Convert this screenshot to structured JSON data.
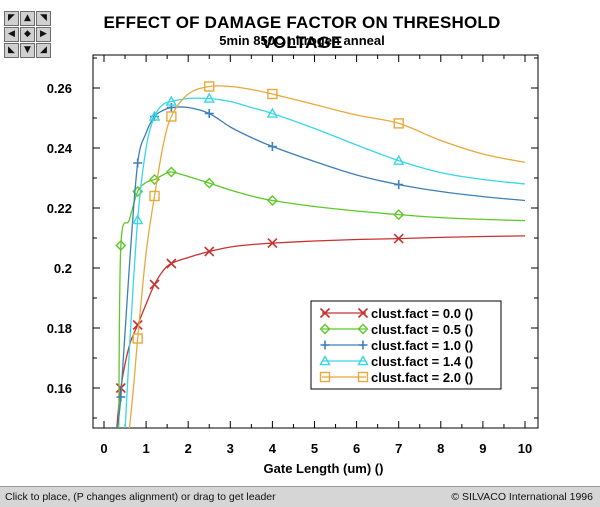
{
  "app": {
    "title": "EFFECT OF DAMAGE FACTOR ON THRESHOLD VOLTAGE",
    "subtitle": "5min 850C nitrogen anneal",
    "nav_buttons": [
      "arrow-up-left",
      "arrow-up",
      "arrow-up-right",
      "arrow-left",
      "center",
      "arrow-right",
      "arrow-down-left",
      "arrow-down",
      "arrow-down-right"
    ]
  },
  "status_bar": {
    "hint": "Click to place, (P changes alignment) or drag to get leader",
    "copyright": "© SILVACO International 1996"
  },
  "chart_data": {
    "type": "line",
    "title": "EFFECT OF DAMAGE FACTOR ON THRESHOLD VOLTAGE",
    "subtitle": "5min 850C nitrogen anneal",
    "xlabel": "Gate Length (um) ()",
    "ylabel": "",
    "xlim": [
      0,
      10
    ],
    "ylim": [
      0.146,
      0.273
    ],
    "xticks": [
      0,
      1,
      2,
      3,
      4,
      5,
      6,
      7,
      8,
      9,
      10
    ],
    "xtick_labels": [
      "0",
      "1",
      "2",
      "3",
      "4",
      "5",
      "6",
      "7",
      "8",
      "9",
      "10"
    ],
    "yticks": [
      0.16,
      0.18,
      0.2,
      0.22,
      0.24,
      0.26
    ],
    "ytick_labels": [
      "0.16",
      "0.18",
      "0.2",
      "0.22",
      "0.24",
      "0.26"
    ],
    "grid": false,
    "legend_position": "lower-right",
    "series": [
      {
        "name": "clust.fact = 0.0 ()",
        "color": "#c83232",
        "marker": "x",
        "x": [
          0.3,
          0.4,
          0.6,
          0.8,
          1.0,
          1.2,
          1.4,
          1.6,
          2.0,
          2.5,
          3.0,
          3.5,
          4.0,
          5.0,
          6.0,
          7.0,
          8.0,
          9.0,
          10.0
        ],
        "y": [
          0.146,
          0.16,
          0.174,
          0.181,
          0.188,
          0.1945,
          0.199,
          0.2015,
          0.2035,
          0.2055,
          0.207,
          0.2078,
          0.2083,
          0.209,
          0.2095,
          0.2098,
          0.2102,
          0.2105,
          0.2107
        ],
        "markers_x": [
          0.4,
          0.8,
          1.2,
          1.6,
          2.5,
          4.0,
          7.0
        ],
        "markers_y": [
          0.16,
          0.181,
          0.1945,
          0.2015,
          0.2055,
          0.2083,
          0.2098
        ]
      },
      {
        "name": "clust.fact = 0.5 ()",
        "color": "#5ec82a",
        "marker": "diamond",
        "x": [
          0.35,
          0.4,
          0.6,
          0.8,
          1.0,
          1.2,
          1.4,
          1.6,
          2.0,
          2.5,
          3.0,
          3.5,
          4.0,
          5.0,
          6.0,
          7.0,
          8.0,
          9.0,
          10.0
        ],
        "y": [
          0.146,
          0.2075,
          0.216,
          0.2255,
          0.2285,
          0.2295,
          0.231,
          0.232,
          0.2305,
          0.2283,
          0.226,
          0.224,
          0.2225,
          0.2205,
          0.219,
          0.2178,
          0.2168,
          0.2162,
          0.2158
        ],
        "markers_x": [
          0.4,
          0.8,
          1.2,
          1.6,
          2.5,
          4.0,
          7.0
        ],
        "markers_y": [
          0.2075,
          0.2255,
          0.2295,
          0.232,
          0.2283,
          0.2225,
          0.2178
        ]
      },
      {
        "name": "clust.fact = 1.0 ()",
        "color": "#3d7fb8",
        "marker": "plus",
        "x": [
          0.3,
          0.4,
          0.6,
          0.8,
          1.0,
          1.2,
          1.4,
          1.6,
          2.0,
          2.5,
          3.0,
          3.5,
          4.0,
          5.0,
          6.0,
          7.0,
          8.0,
          9.0,
          10.0
        ],
        "y": [
          0.146,
          0.157,
          0.2,
          0.235,
          0.245,
          0.2505,
          0.2525,
          0.2535,
          0.2535,
          0.2515,
          0.247,
          0.2435,
          0.2405,
          0.2355,
          0.231,
          0.2278,
          0.2255,
          0.2238,
          0.2225
        ],
        "markers_x": [
          0.4,
          0.8,
          1.2,
          1.6,
          2.5,
          4.0,
          7.0
        ],
        "markers_y": [
          0.157,
          0.235,
          0.2505,
          0.2535,
          0.2515,
          0.2405,
          0.2278
        ]
      },
      {
        "name": "clust.fact = 1.4 ()",
        "color": "#38d8e6",
        "marker": "triangle",
        "x": [
          0.5,
          0.6,
          0.8,
          1.0,
          1.2,
          1.4,
          1.6,
          2.0,
          2.5,
          3.0,
          3.5,
          4.0,
          5.0,
          6.0,
          7.0,
          8.0,
          9.0,
          10.0
        ],
        "y": [
          0.146,
          0.172,
          0.216,
          0.24,
          0.2505,
          0.2545,
          0.2555,
          0.2565,
          0.2565,
          0.2555,
          0.2535,
          0.2515,
          0.2465,
          0.241,
          0.2358,
          0.2318,
          0.2295,
          0.228
        ],
        "markers_x": [
          0.8,
          1.2,
          1.6,
          2.5,
          4.0,
          7.0
        ],
        "markers_y": [
          0.216,
          0.2505,
          0.2555,
          0.2565,
          0.2515,
          0.2358
        ]
      },
      {
        "name": "clust.fact = 2.0 ()",
        "color": "#e8a83a",
        "marker": "square",
        "x": [
          0.6,
          0.7,
          0.8,
          1.0,
          1.2,
          1.4,
          1.6,
          2.0,
          2.5,
          3.0,
          3.5,
          4.0,
          5.0,
          6.0,
          7.0,
          8.0,
          9.0,
          10.0
        ],
        "y": [
          0.146,
          0.16,
          0.1765,
          0.205,
          0.224,
          0.2405,
          0.2505,
          0.258,
          0.2605,
          0.2605,
          0.2595,
          0.258,
          0.2545,
          0.251,
          0.2482,
          0.2425,
          0.238,
          0.2352
        ],
        "markers_x": [
          0.8,
          1.2,
          1.6,
          2.5,
          4.0,
          7.0
        ],
        "markers_y": [
          0.1765,
          0.224,
          0.2505,
          0.2605,
          0.258,
          0.2482
        ]
      }
    ]
  }
}
